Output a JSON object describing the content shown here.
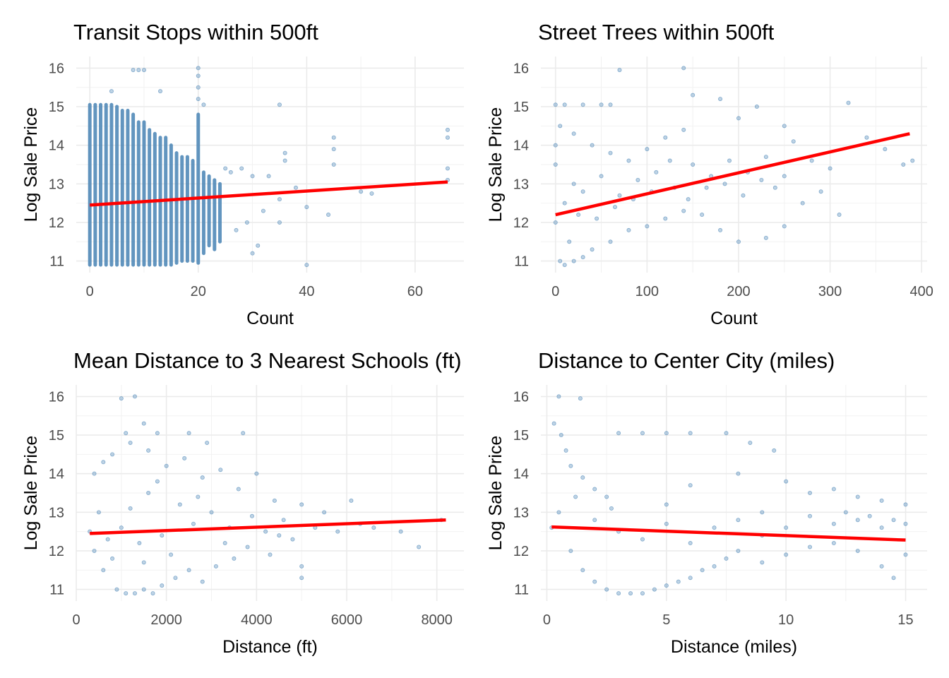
{
  "chart_data": [
    {
      "type": "scatter",
      "title": "Transit Stops within 500ft",
      "xlabel": "Count",
      "ylabel": "Log Sale Price",
      "xlim": [
        -2.5,
        69
      ],
      "ylim": [
        10.7,
        16.3
      ],
      "xticks": [
        0,
        20,
        40,
        60
      ],
      "yticks": [
        11,
        12,
        13,
        14,
        15,
        16
      ],
      "grid": true,
      "point_color": "#4682B4",
      "line_color": "#FF0000",
      "stripes": [
        [
          0,
          10.9,
          15.05
        ],
        [
          1,
          10.9,
          15.05
        ],
        [
          2,
          10.9,
          15.05
        ],
        [
          3,
          10.9,
          15.05
        ],
        [
          4,
          10.9,
          15.05
        ],
        [
          5,
          10.9,
          15
        ],
        [
          6,
          10.9,
          14.9
        ],
        [
          7,
          10.9,
          14.9
        ],
        [
          8,
          10.9,
          14.8
        ],
        [
          9,
          10.9,
          14.6
        ],
        [
          10,
          10.9,
          14.6
        ],
        [
          11,
          10.9,
          14.4
        ],
        [
          12,
          10.9,
          14.3
        ],
        [
          13,
          10.9,
          14.2
        ],
        [
          14,
          10.9,
          14.2
        ],
        [
          15,
          10.9,
          14.0
        ],
        [
          16,
          10.95,
          13.8
        ],
        [
          17,
          11.0,
          13.7
        ],
        [
          18,
          11.0,
          13.7
        ],
        [
          19,
          11.0,
          13.6
        ],
        [
          20,
          10.95,
          14.8
        ],
        [
          21,
          11.2,
          13.3
        ],
        [
          22,
          11.4,
          13.2
        ],
        [
          23,
          11.3,
          13.1
        ],
        [
          24,
          11.5,
          13.0
        ]
      ],
      "points": [
        [
          8,
          15.95
        ],
        [
          9,
          15.95
        ],
        [
          10,
          15.95
        ],
        [
          20,
          16.0
        ],
        [
          20,
          15.8
        ],
        [
          20,
          15.5
        ],
        [
          20,
          15.2
        ],
        [
          4,
          15.4
        ],
        [
          13,
          15.4
        ],
        [
          35,
          15.05
        ],
        [
          21,
          15.05
        ],
        [
          25,
          13.4
        ],
        [
          26,
          13.3
        ],
        [
          28,
          13.4
        ],
        [
          30,
          13.2
        ],
        [
          30,
          11.2
        ],
        [
          32,
          12.3
        ],
        [
          33,
          13.2
        ],
        [
          35,
          12.6
        ],
        [
          36,
          13.8
        ],
        [
          36,
          13.6
        ],
        [
          38,
          12.9
        ],
        [
          40,
          10.9
        ],
        [
          40,
          12.4
        ],
        [
          44,
          12.2
        ],
        [
          45,
          13.5
        ],
        [
          45,
          14.2
        ],
        [
          45,
          13.9
        ],
        [
          50,
          12.8
        ],
        [
          52,
          12.75
        ],
        [
          66,
          14.4
        ],
        [
          66,
          14.2
        ],
        [
          66,
          13.4
        ],
        [
          66,
          13.1
        ],
        [
          27,
          11.8
        ],
        [
          29,
          12.0
        ],
        [
          31,
          11.4
        ],
        [
          35,
          12.0
        ]
      ],
      "fit_line": [
        [
          0,
          12.45
        ],
        [
          66,
          13.05
        ]
      ]
    },
    {
      "type": "scatter",
      "title": "Street Trees within 500ft",
      "xlabel": "Count",
      "ylabel": "Log Sale Price",
      "xlim": [
        -16,
        406
      ],
      "ylim": [
        10.7,
        16.3
      ],
      "xticks": [
        0,
        100,
        200,
        300,
        400
      ],
      "yticks": [
        11,
        12,
        13,
        14,
        15,
        16
      ],
      "grid": true,
      "point_color": "#4682B4",
      "line_color": "#FF0000",
      "points": [
        [
          0,
          15.05
        ],
        [
          10,
          15.05
        ],
        [
          30,
          15.05
        ],
        [
          50,
          15.05
        ],
        [
          60,
          15.05
        ],
        [
          70,
          15.95
        ],
        [
          5,
          14.5
        ],
        [
          20,
          14.3
        ],
        [
          40,
          14.0
        ],
        [
          60,
          13.8
        ],
        [
          80,
          13.6
        ],
        [
          100,
          13.9
        ],
        [
          120,
          14.2
        ],
        [
          140,
          14.4
        ],
        [
          140,
          16.0
        ],
        [
          150,
          15.3
        ],
        [
          180,
          15.2
        ],
        [
          200,
          14.7
        ],
        [
          220,
          15.0
        ],
        [
          250,
          14.5
        ],
        [
          260,
          14.1
        ],
        [
          280,
          13.6
        ],
        [
          300,
          13.4
        ],
        [
          320,
          15.1
        ],
        [
          340,
          14.2
        ],
        [
          360,
          13.9
        ],
        [
          380,
          13.5
        ],
        [
          390,
          13.6
        ],
        [
          5,
          11.0
        ],
        [
          10,
          10.9
        ],
        [
          20,
          11.0
        ],
        [
          30,
          11.1
        ],
        [
          40,
          11.3
        ],
        [
          60,
          11.5
        ],
        [
          80,
          11.8
        ],
        [
          100,
          11.9
        ],
        [
          120,
          12.1
        ],
        [
          140,
          12.3
        ],
        [
          160,
          12.2
        ],
        [
          180,
          11.8
        ],
        [
          200,
          11.5
        ],
        [
          230,
          11.6
        ],
        [
          250,
          11.9
        ],
        [
          270,
          12.5
        ],
        [
          290,
          12.8
        ],
        [
          310,
          12.2
        ],
        [
          10,
          12.5
        ],
        [
          20,
          13.0
        ],
        [
          30,
          12.8
        ],
        [
          50,
          13.2
        ],
        [
          70,
          12.7
        ],
        [
          90,
          13.1
        ],
        [
          110,
          13.3
        ],
        [
          130,
          12.9
        ],
        [
          150,
          13.5
        ],
        [
          170,
          13.2
        ],
        [
          190,
          13.6
        ],
        [
          210,
          13.3
        ],
        [
          230,
          13.7
        ],
        [
          250,
          13.2
        ],
        [
          0,
          12.0
        ],
        [
          0,
          13.5
        ],
        [
          0,
          14.0
        ],
        [
          15,
          11.5
        ],
        [
          25,
          12.2
        ],
        [
          45,
          12.1
        ],
        [
          65,
          12.4
        ],
        [
          85,
          12.6
        ],
        [
          105,
          12.8
        ],
        [
          125,
          13.6
        ],
        [
          145,
          12.6
        ],
        [
          165,
          12.9
        ],
        [
          185,
          13.0
        ],
        [
          205,
          12.7
        ],
        [
          225,
          13.1
        ],
        [
          240,
          12.9
        ]
      ],
      "fit_line": [
        [
          0,
          12.2
        ],
        [
          387,
          14.3
        ]
      ]
    },
    {
      "type": "scatter",
      "title": "Mean Distance to 3 Nearest Schools (ft)",
      "xlabel": "Distance (ft)",
      "ylabel": "Log Sale Price",
      "xlim": [
        0,
        8600
      ],
      "ylim": [
        10.7,
        16.3
      ],
      "xticks": [
        0,
        2000,
        4000,
        6000,
        8000
      ],
      "yticks": [
        11,
        12,
        13,
        14,
        15,
        16
      ],
      "grid": true,
      "point_color": "#4682B4",
      "line_color": "#FF0000",
      "points": [
        [
          1000,
          15.95
        ],
        [
          1300,
          16.0
        ],
        [
          1100,
          15.05
        ],
        [
          1500,
          15.3
        ],
        [
          1800,
          15.05
        ],
        [
          2500,
          15.05
        ],
        [
          2900,
          14.8
        ],
        [
          3700,
          15.05
        ],
        [
          400,
          14.0
        ],
        [
          600,
          14.3
        ],
        [
          800,
          14.5
        ],
        [
          1200,
          14.8
        ],
        [
          1600,
          14.6
        ],
        [
          2000,
          14.2
        ],
        [
          2400,
          14.4
        ],
        [
          2800,
          13.9
        ],
        [
          3200,
          14.1
        ],
        [
          3600,
          13.6
        ],
        [
          4000,
          14.0
        ],
        [
          4400,
          13.3
        ],
        [
          5000,
          13.2
        ],
        [
          5500,
          13.0
        ],
        [
          6100,
          13.3
        ],
        [
          6600,
          12.6
        ],
        [
          7200,
          12.5
        ],
        [
          7600,
          12.1
        ],
        [
          8100,
          12.8
        ],
        [
          300,
          12.5
        ],
        [
          500,
          13.0
        ],
        [
          700,
          12.3
        ],
        [
          900,
          11.0
        ],
        [
          1100,
          10.9
        ],
        [
          1300,
          10.9
        ],
        [
          1500,
          11.0
        ],
        [
          1700,
          10.9
        ],
        [
          1900,
          11.1
        ],
        [
          2200,
          11.3
        ],
        [
          2500,
          11.5
        ],
        [
          2800,
          11.2
        ],
        [
          3100,
          11.6
        ],
        [
          3500,
          11.8
        ],
        [
          3800,
          12.1
        ],
        [
          4300,
          11.9
        ],
        [
          5000,
          11.3
        ],
        [
          5000,
          11.6
        ],
        [
          4800,
          12.3
        ],
        [
          4600,
          12.8
        ],
        [
          4200,
          12.5
        ],
        [
          3400,
          12.6
        ],
        [
          3000,
          13.0
        ],
        [
          2600,
          12.7
        ],
        [
          2300,
          13.2
        ],
        [
          1900,
          12.4
        ],
        [
          1600,
          13.5
        ],
        [
          1400,
          12.2
        ],
        [
          1200,
          13.1
        ],
        [
          1000,
          12.6
        ],
        [
          800,
          11.8
        ],
        [
          600,
          11.5
        ],
        [
          400,
          12.0
        ],
        [
          1500,
          11.7
        ],
        [
          1800,
          13.8
        ],
        [
          2100,
          11.9
        ],
        [
          2700,
          13.4
        ],
        [
          3300,
          12.2
        ],
        [
          3900,
          12.9
        ],
        [
          4500,
          12.4
        ],
        [
          5300,
          12.6
        ],
        [
          5800,
          12.5
        ],
        [
          6300,
          12.7
        ]
      ],
      "fit_line": [
        [
          300,
          12.45
        ],
        [
          8200,
          12.8
        ]
      ]
    },
    {
      "type": "scatter",
      "title": "Distance to Center City (miles)",
      "xlabel": "Distance (miles)",
      "ylabel": "Log Sale Price",
      "xlim": [
        -0.25,
        15.9
      ],
      "ylim": [
        10.7,
        16.3
      ],
      "xticks": [
        0,
        5,
        10,
        15
      ],
      "yticks": [
        11,
        12,
        13,
        14,
        15,
        16
      ],
      "grid": true,
      "point_color": "#4682B4",
      "line_color": "#FF0000",
      "points": [
        [
          0.5,
          16.0
        ],
        [
          1.4,
          15.95
        ],
        [
          0.3,
          15.3
        ],
        [
          0.6,
          15.0
        ],
        [
          0.8,
          14.6
        ],
        [
          1.0,
          14.2
        ],
        [
          1.5,
          13.9
        ],
        [
          2.0,
          13.6
        ],
        [
          2.5,
          13.4
        ],
        [
          3,
          15.05
        ],
        [
          4,
          15.05
        ],
        [
          5,
          15.05
        ],
        [
          6,
          15.05
        ],
        [
          7.5,
          15.05
        ],
        [
          8.5,
          14.8
        ],
        [
          9.5,
          14.6
        ],
        [
          8,
          14.0
        ],
        [
          6,
          13.7
        ],
        [
          10,
          13.8
        ],
        [
          11,
          13.5
        ],
        [
          12,
          13.6
        ],
        [
          13,
          13.4
        ],
        [
          14,
          13.3
        ],
        [
          15,
          13.2
        ],
        [
          0.2,
          12.6
        ],
        [
          0.5,
          13.0
        ],
        [
          1,
          12.0
        ],
        [
          1.5,
          11.5
        ],
        [
          2,
          11.2
        ],
        [
          2.5,
          11.0
        ],
        [
          3,
          10.9
        ],
        [
          3.5,
          10.9
        ],
        [
          4,
          10.9
        ],
        [
          4.5,
          11.0
        ],
        [
          5,
          11.1
        ],
        [
          5.5,
          11.2
        ],
        [
          6,
          11.3
        ],
        [
          6.5,
          11.5
        ],
        [
          7,
          11.6
        ],
        [
          7.5,
          11.8
        ],
        [
          8,
          12.0
        ],
        [
          9,
          11.7
        ],
        [
          10,
          11.9
        ],
        [
          11,
          12.1
        ],
        [
          12,
          12.2
        ],
        [
          13,
          12.0
        ],
        [
          14,
          11.6
        ],
        [
          14.5,
          11.3
        ],
        [
          15,
          11.9
        ],
        [
          3,
          12.5
        ],
        [
          4,
          12.3
        ],
        [
          5,
          12.7
        ],
        [
          6,
          12.2
        ],
        [
          7,
          12.6
        ],
        [
          8,
          12.8
        ],
        [
          9,
          12.4
        ],
        [
          10,
          12.6
        ],
        [
          11,
          12.9
        ],
        [
          12,
          12.7
        ],
        [
          13,
          12.8
        ],
        [
          14,
          12.6
        ],
        [
          15,
          12.7
        ],
        [
          12.5,
          13.0
        ],
        [
          13.5,
          12.9
        ],
        [
          14.5,
          12.8
        ],
        [
          2,
          12.8
        ],
        [
          2.7,
          13.1
        ],
        [
          1.2,
          13.4
        ],
        [
          5,
          13.2
        ],
        [
          9,
          13.0
        ]
      ],
      "fit_line": [
        [
          0.2,
          12.62
        ],
        [
          15,
          12.28
        ]
      ]
    }
  ]
}
